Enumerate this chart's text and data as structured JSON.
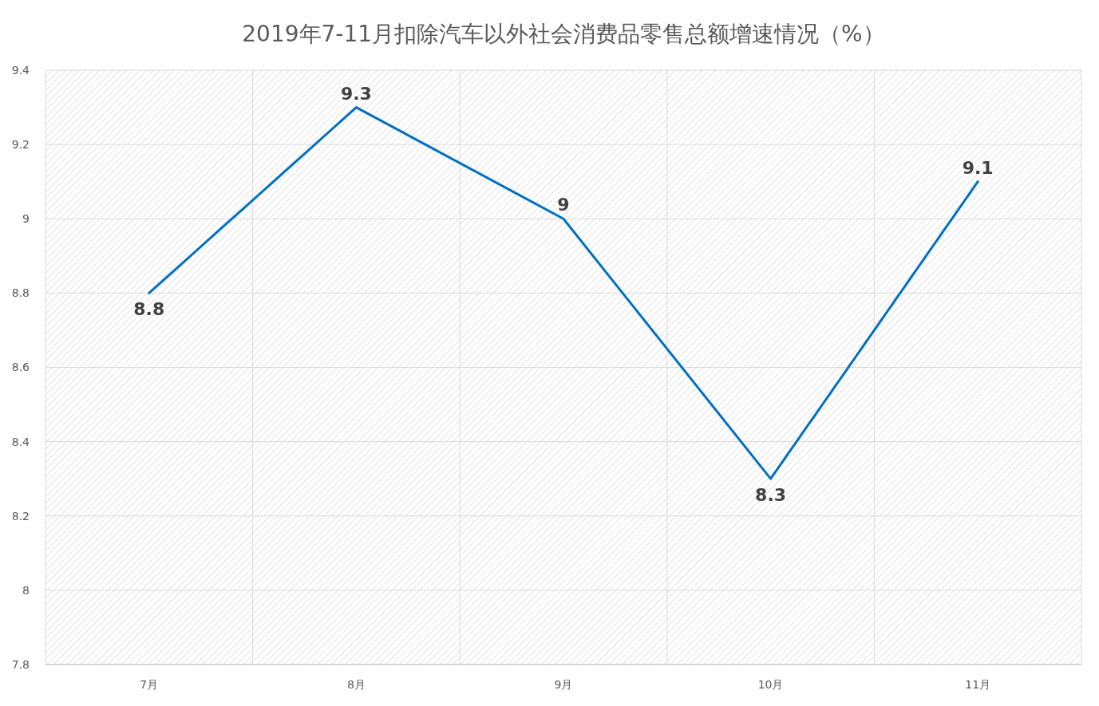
{
  "chart_data": {
    "type": "line",
    "title": "2019年7-11月扣除汽车以外社会消费品零售总额增速情况（%）",
    "categories": [
      "7月",
      "8月",
      "9月",
      "10月",
      "11月"
    ],
    "series": [
      {
        "color": "#0070c0",
        "values": [
          8.8,
          9.3,
          9,
          8.3,
          9.1
        ]
      }
    ],
    "ylim": [
      7.8,
      9.4
    ],
    "yticks": [
      7.8,
      8,
      8.2,
      8.4,
      8.6,
      8.8,
      9,
      9.2,
      9.4
    ],
    "grid": true,
    "data_labels": true,
    "marker": "none"
  }
}
